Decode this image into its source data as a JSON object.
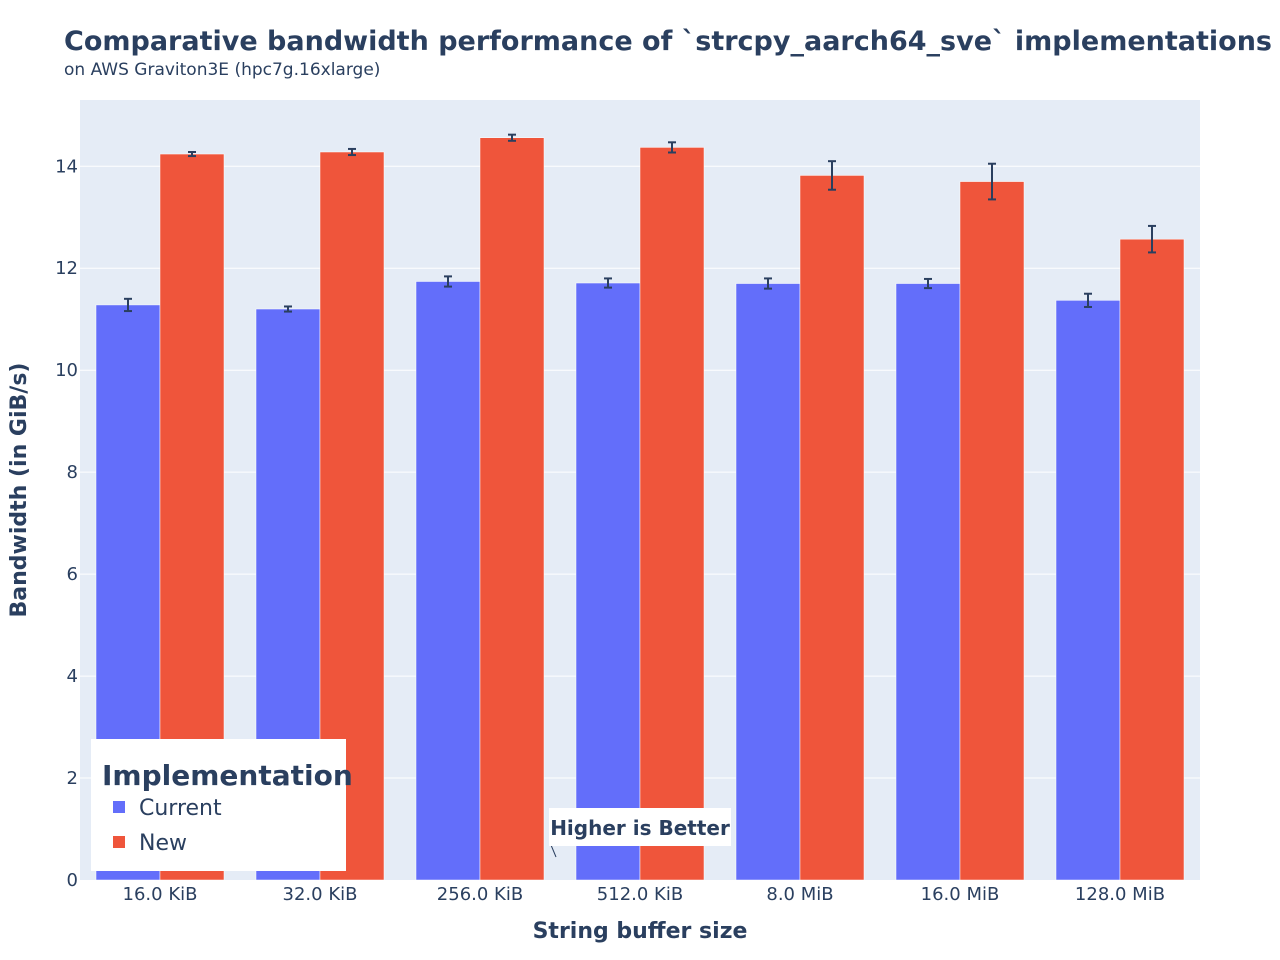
{
  "chart_data": {
    "type": "bar",
    "title": "Comparative bandwidth performance of `strcpy_aarch64_sve` implementations",
    "subtitle": "on AWS Graviton3E (hpc7g.16xlarge)",
    "xlabel": "String buffer size",
    "ylabel": "Bandwidth (in GiB/s)",
    "categories": [
      "16.0 KiB",
      "32.0 KiB",
      "256.0 KiB",
      "512.0 KiB",
      "8.0 MiB",
      "16.0 MiB",
      "128.0 MiB"
    ],
    "series": [
      {
        "name": "Current",
        "color": "#636efa",
        "values": [
          11.28,
          11.2,
          11.74,
          11.71,
          11.7,
          11.7,
          11.37
        ],
        "errors": [
          0.12,
          0.05,
          0.1,
          0.09,
          0.1,
          0.09,
          0.13
        ]
      },
      {
        "name": "New",
        "color": "#ef553b",
        "values": [
          14.24,
          14.28,
          14.56,
          14.37,
          13.82,
          13.7,
          12.57
        ],
        "errors": [
          0.04,
          0.06,
          0.06,
          0.1,
          0.28,
          0.35,
          0.26
        ]
      }
    ],
    "ylim": [
      0,
      15.3
    ],
    "yticks": [
      0,
      2,
      4,
      6,
      8,
      10,
      12,
      14
    ],
    "grid": true,
    "legend": {
      "title": "Implementation",
      "placement": "bottom-left"
    },
    "annotation": "Higher is Better"
  },
  "colors": {
    "plot_background": "#e5ecf6",
    "gridline": "#ffffff",
    "text": "#2a3f5f",
    "error_bar": "#2a3f5f"
  }
}
